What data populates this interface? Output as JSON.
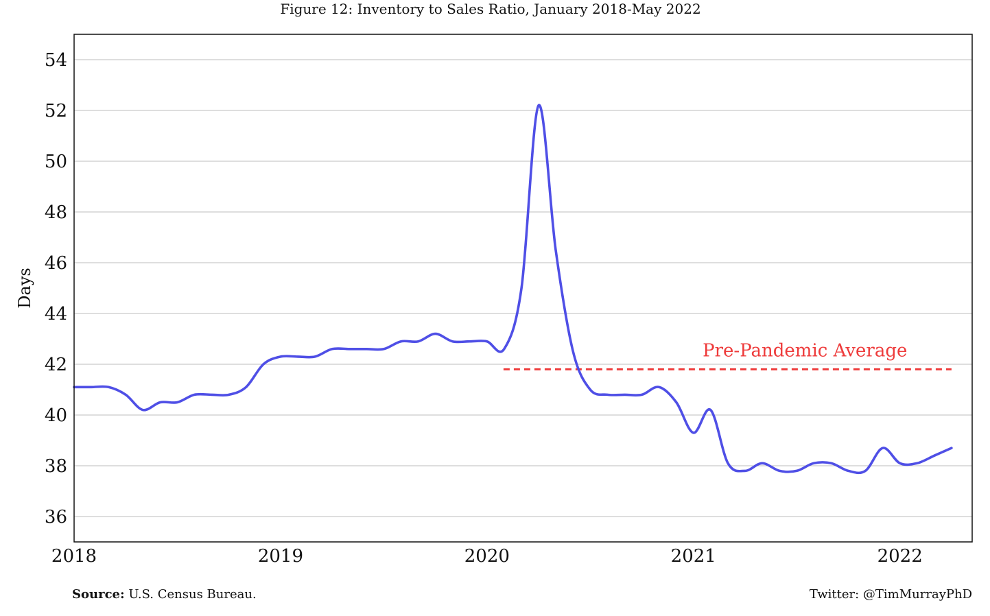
{
  "chart_data": {
    "type": "line",
    "title": "Figure 12: Inventory to Sales Ratio, January 2018-May 2022",
    "xlabel": "",
    "ylabel": "Days",
    "x_ticks": [
      "2018",
      "2019",
      "2020",
      "2021",
      "2022"
    ],
    "y_ticks": [
      "36",
      "38",
      "40",
      "42",
      "44",
      "46",
      "48",
      "50",
      "52",
      "54"
    ],
    "xlim": [
      2018.0,
      2022.35
    ],
    "ylim": [
      35,
      55
    ],
    "grid": "horizontal",
    "series": [
      {
        "name": "",
        "color": "#4f4fe6",
        "x": [
          2018.0,
          2018.083,
          2018.167,
          2018.25,
          2018.333,
          2018.417,
          2018.5,
          2018.583,
          2018.667,
          2018.75,
          2018.833,
          2018.917,
          2019.0,
          2019.083,
          2019.167,
          2019.25,
          2019.333,
          2019.417,
          2019.5,
          2019.583,
          2019.667,
          2019.75,
          2019.833,
          2019.917,
          2020.0,
          2020.083,
          2020.167,
          2020.25,
          2020.333,
          2020.417,
          2020.5,
          2020.583,
          2020.667,
          2020.75,
          2020.833,
          2020.917,
          2021.0,
          2021.083,
          2021.167,
          2021.25,
          2021.333,
          2021.417,
          2021.5,
          2021.583,
          2021.667,
          2021.75,
          2021.833,
          2021.917,
          2022.0,
          2022.083,
          2022.167,
          2022.25
        ],
        "values": [
          41.1,
          41.1,
          41.1,
          40.8,
          40.2,
          40.5,
          40.5,
          40.8,
          40.8,
          40.8,
          41.1,
          42.0,
          42.3,
          42.3,
          42.3,
          42.6,
          42.6,
          42.6,
          42.6,
          42.9,
          42.9,
          43.2,
          42.9,
          42.9,
          42.9,
          42.6,
          45.0,
          52.2,
          46.5,
          42.5,
          41.0,
          40.8,
          40.8,
          40.8,
          41.1,
          40.5,
          39.3,
          40.2,
          38.1,
          37.8,
          38.1,
          37.8,
          37.8,
          38.1,
          38.1,
          37.8,
          37.8,
          38.7,
          38.1,
          38.1,
          38.4,
          38.7
        ]
      }
    ],
    "reference_line": {
      "label": "Pre-Pandemic Average",
      "value": 41.8,
      "x_start": 2020.08,
      "x_end": 2022.25,
      "color": "#ee3b3b"
    }
  },
  "footer": {
    "source_label": "Source:",
    "source_text": "U.S. Census Bureau.",
    "credit": "Twitter: @TimMurrayPhD"
  }
}
